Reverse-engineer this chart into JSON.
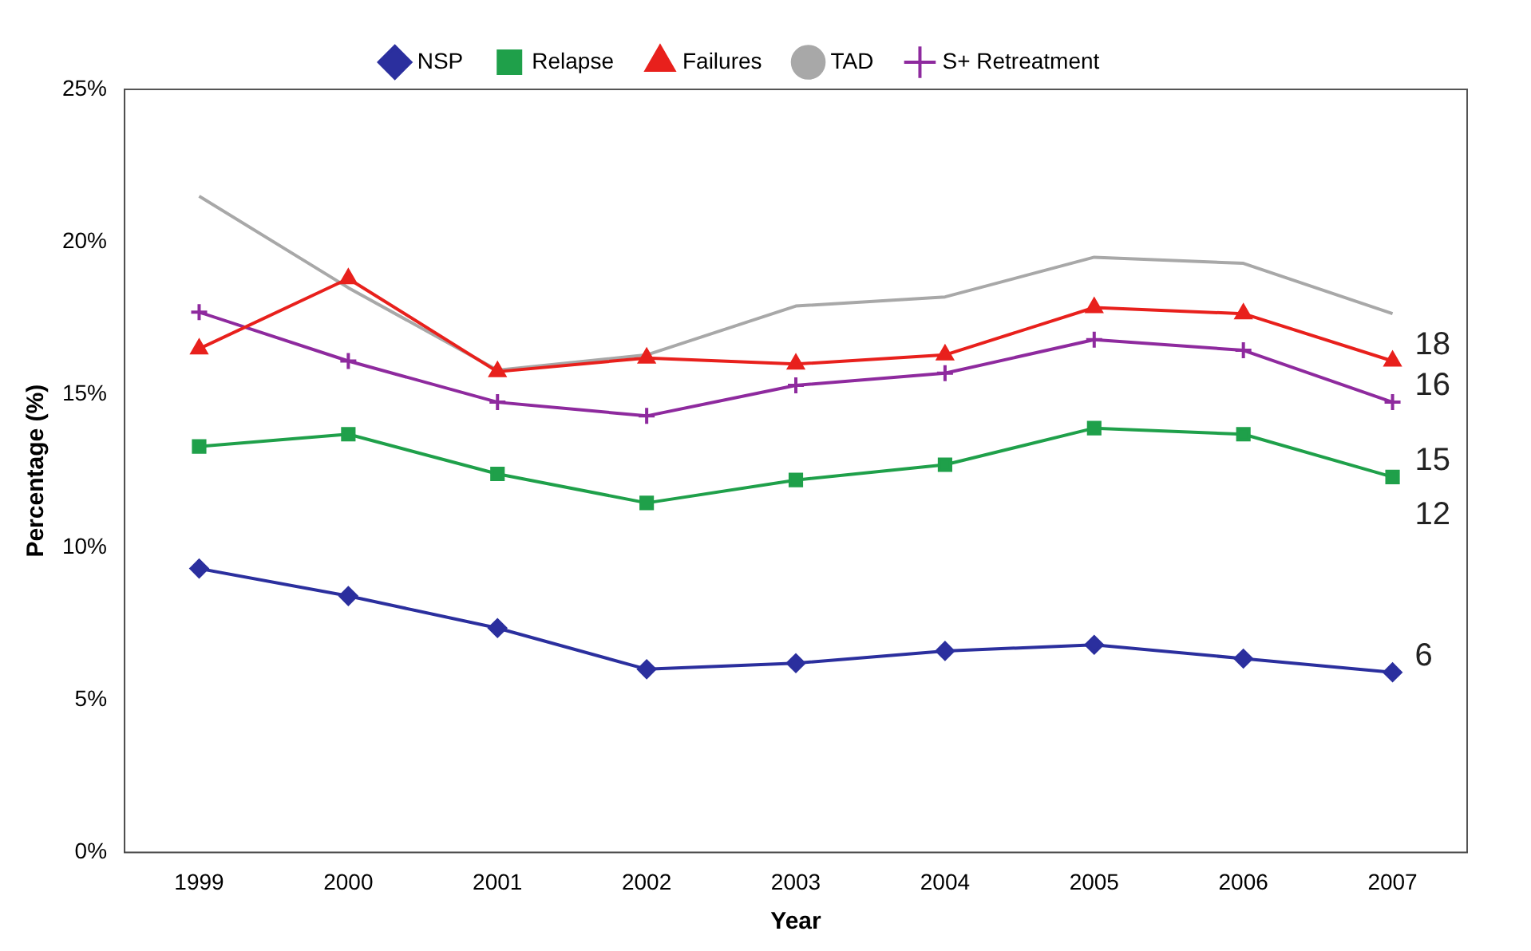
{
  "chart_data": {
    "type": "line",
    "xlabel": "Year",
    "ylabel": "Percentage (%)",
    "categories": [
      "1999",
      "2000",
      "2001",
      "2002",
      "2003",
      "2004",
      "2005",
      "2006",
      "2007"
    ],
    "series": [
      {
        "name": "NSP",
        "color": "#2b2f9e",
        "marker": "diamond",
        "values": [
          9.3,
          8.4,
          7.35,
          6.0,
          6.2,
          6.6,
          6.8,
          6.35,
          5.9
        ]
      },
      {
        "name": "Relapse",
        "color": "#1fa04a",
        "marker": "square",
        "values": [
          13.3,
          13.7,
          12.4,
          11.45,
          12.2,
          12.7,
          13.9,
          13.7,
          12.3
        ]
      },
      {
        "name": "Failures",
        "color": "#e8201c",
        "marker": "triangle",
        "values": [
          16.5,
          18.8,
          15.75,
          16.2,
          16.0,
          16.3,
          17.85,
          17.65,
          16.1
        ]
      },
      {
        "name": "TAD",
        "color": "#a8a8a8",
        "marker": "none",
        "values": [
          21.5,
          18.5,
          15.8,
          16.3,
          17.9,
          18.2,
          19.5,
          19.3,
          17.65
        ]
      },
      {
        "name": "S+ Retreatment",
        "color": "#8e2a9e",
        "marker": "cross",
        "values": [
          17.7,
          16.1,
          14.75,
          14.3,
          15.3,
          15.7,
          16.8,
          16.45,
          14.75
        ]
      }
    ],
    "ylim": [
      0,
      25
    ],
    "yticks": [
      {
        "value": 0,
        "label": "0%"
      },
      {
        "value": 5,
        "label": "5%"
      },
      {
        "value": 10,
        "label": "10%"
      },
      {
        "value": 15,
        "label": "15%"
      },
      {
        "value": 20,
        "label": "20%"
      },
      {
        "value": 25,
        "label": "25%"
      }
    ],
    "grid": false,
    "legend": "top",
    "annotations": [
      {
        "text": "18",
        "x": "2007",
        "y": 16.1
      },
      {
        "text": "16",
        "x": "2007",
        "y": 14.75
      },
      {
        "text": "15",
        "x": "2007",
        "y": 12.3
      },
      "12",
      {
        "text": "6",
        "x": "2007",
        "y": 5.9
      }
    ]
  }
}
